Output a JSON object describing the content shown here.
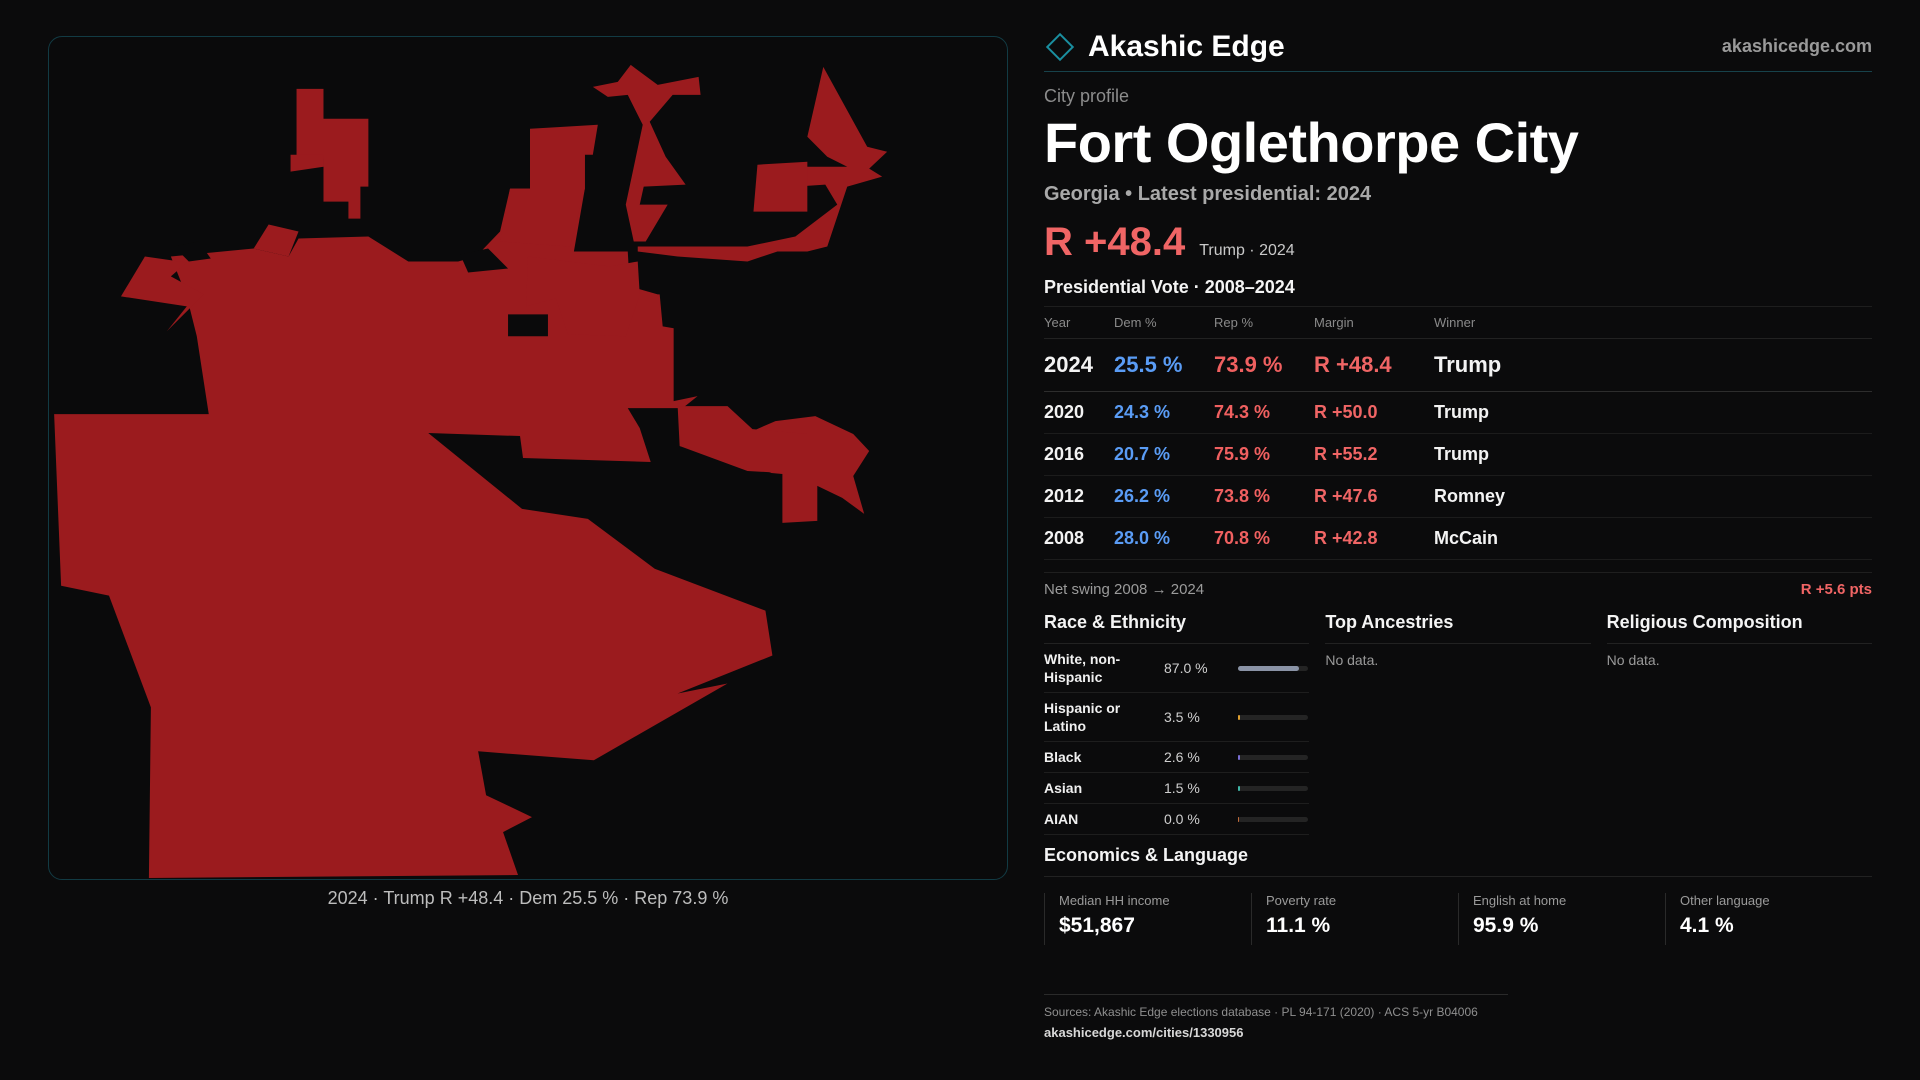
{
  "map": {
    "fill_color": "#9b1b1e",
    "frame_border_color": "#123b44",
    "caption": "2024 · Trump R +48.4 · Dem 25.5 % · Rep 73.9 %"
  },
  "brand": {
    "name": "Akashic Edge",
    "url": "akashicedge.com",
    "accent_color": "#1a8fa0"
  },
  "profile": {
    "eyebrow": "City profile",
    "city": "Fort Oglethorpe City",
    "subline": "Georgia • Latest presidential: 2024",
    "headline_margin": "R +48.4",
    "headline_sub": "Trump · 2024"
  },
  "votes": {
    "title": "Presidential Vote · 2008–2024",
    "headers": {
      "year": "Year",
      "dem": "Dem %",
      "rep": "Rep %",
      "margin": "Margin",
      "winner": "Winner"
    },
    "rows": [
      {
        "year": "2024",
        "dem": "25.5 %",
        "rep": "73.9 %",
        "margin": "R +48.4",
        "winner": "Trump"
      },
      {
        "year": "2020",
        "dem": "24.3 %",
        "rep": "74.3 %",
        "margin": "R +50.0",
        "winner": "Trump"
      },
      {
        "year": "2016",
        "dem": "20.7 %",
        "rep": "75.9 %",
        "margin": "R +55.2",
        "winner": "Trump"
      },
      {
        "year": "2012",
        "dem": "26.2 %",
        "rep": "73.8 %",
        "margin": "R +47.6",
        "winner": "Romney"
      },
      {
        "year": "2008",
        "dem": "28.0 %",
        "rep": "70.8 %",
        "margin": "R +42.8",
        "winner": "McCain"
      }
    ],
    "swing_label": "Net swing 2008 → 2024",
    "swing_value": "R +5.6 pts",
    "dem_color": "#5a9cf5",
    "rep_color": "#f06060"
  },
  "race": {
    "title": "Race & Ethnicity",
    "rows": [
      {
        "label": "White, non-Hispanic",
        "pct": "87.0 %",
        "value": 87.0,
        "color": "#8a93a6"
      },
      {
        "label": "Hispanic or Latino",
        "pct": "3.5 %",
        "value": 3.5,
        "color": "#e0a030"
      },
      {
        "label": "Black",
        "pct": "2.6 %",
        "value": 2.6,
        "color": "#7b6fd6"
      },
      {
        "label": "Asian",
        "pct": "1.5 %",
        "value": 1.5,
        "color": "#3fb7a8"
      },
      {
        "label": "AIAN",
        "pct": "0.0 %",
        "value": 0.0,
        "color": "#c06a3a"
      }
    ]
  },
  "ancestries": {
    "title": "Top Ancestries",
    "empty": "No data."
  },
  "religion": {
    "title": "Religious Composition",
    "empty": "No data."
  },
  "economics": {
    "title": "Economics & Language",
    "cells": [
      {
        "label": "Median HH income",
        "value": "$51,867"
      },
      {
        "label": "Poverty rate",
        "value": "11.1 %"
      },
      {
        "label": "English at home",
        "value": "95.9 %"
      },
      {
        "label": "Other language",
        "value": "4.1 %"
      }
    ]
  },
  "sources": {
    "line": "Sources: Akashic Edge elections database · PL 94-171 (2020) · ACS 5-yr B04006",
    "url": "akashicedge.com/cities/1330956"
  }
}
